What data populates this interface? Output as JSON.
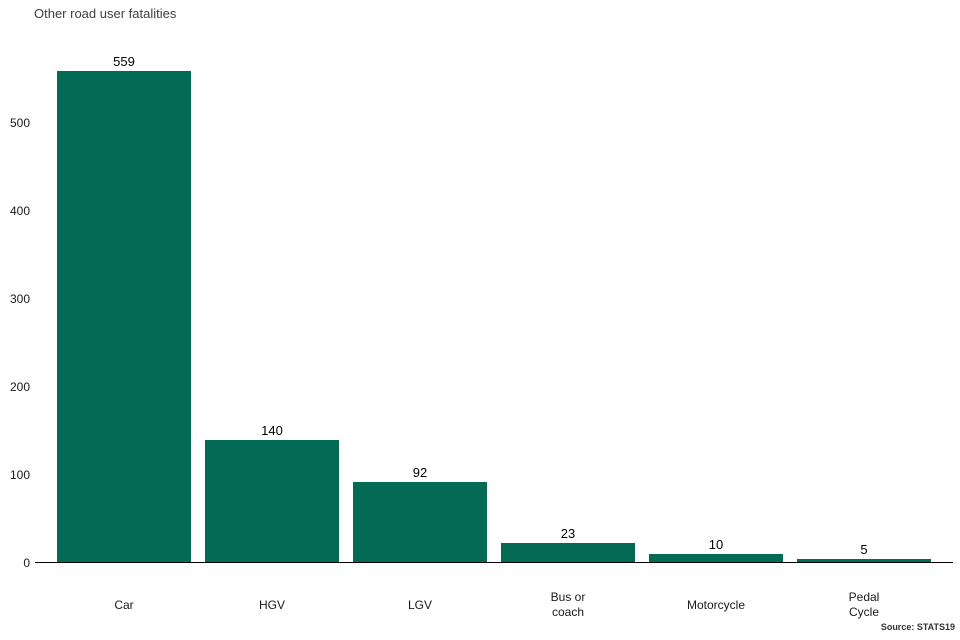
{
  "title": "Other road user fatalities",
  "source": "Source: STATS19",
  "chart_data": {
    "type": "bar",
    "title": "Other road user fatalities",
    "categories": [
      "Car",
      "HGV",
      "LGV",
      "Bus or coach",
      "Motorcycle",
      "Pedal Cycle"
    ],
    "values": [
      559,
      140,
      92,
      23,
      10,
      5
    ],
    "xlabel": "",
    "ylabel": "",
    "yticks": [
      0,
      100,
      200,
      300,
      400,
      500
    ],
    "ylim": [
      0,
      580
    ],
    "bar_color": "#046a55",
    "grid": false,
    "legend": "none",
    "data_labels": true,
    "source_note": "Source: STATS19"
  }
}
